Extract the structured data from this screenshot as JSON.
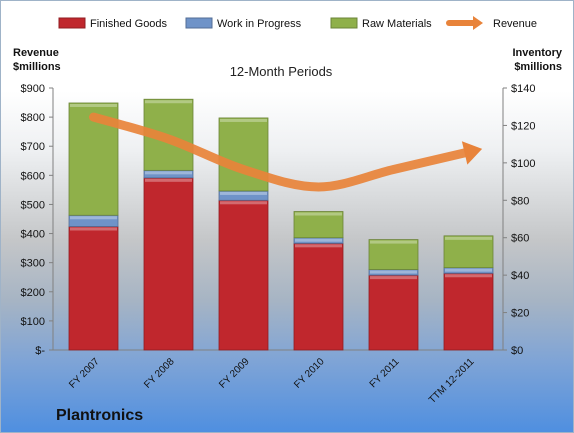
{
  "company": "Plantronics",
  "chart_data": {
    "type": "bar",
    "title": "12-Month Periods",
    "y_left_label_lines": [
      "Revenue",
      "$millions"
    ],
    "y_right_label_lines": [
      "Inventory",
      "$millions"
    ],
    "categories": [
      "FY 2007",
      "FY 2008",
      "FY 2009",
      "FY 2010",
      "FY 2011",
      "TTM 12-2011"
    ],
    "series": [
      {
        "name": "Finished Goods",
        "axis": "right",
        "type": "stacked-bar",
        "color": "#c0272d",
        "values": [
          66,
          92,
          80,
          57,
          40,
          41
        ]
      },
      {
        "name": "Work in Progress",
        "axis": "right",
        "type": "stacked-bar",
        "color": "#6f93c8",
        "values": [
          6,
          4,
          5,
          3,
          3,
          3
        ]
      },
      {
        "name": "Raw Materials",
        "axis": "right",
        "type": "stacked-bar",
        "color": "#8fb04a",
        "values": [
          60,
          38,
          39,
          14,
          16,
          17
        ]
      },
      {
        "name": "Revenue",
        "axis": "left",
        "type": "line",
        "color": "#e8833a",
        "values": [
          800,
          725,
          620,
          560,
          620,
          680
        ]
      }
    ],
    "y_left": {
      "min": 0,
      "max": 900,
      "step": 100,
      "ticks": [
        "$-",
        "$100",
        "$200",
        "$300",
        "$400",
        "$500",
        "$600",
        "$700",
        "$800",
        "$900"
      ]
    },
    "y_right": {
      "min": 0,
      "max": 140,
      "step": 20,
      "ticks": [
        "$0",
        "$20",
        "$40",
        "$60",
        "$80",
        "$100",
        "$120",
        "$140"
      ]
    },
    "legend_position": "top"
  }
}
